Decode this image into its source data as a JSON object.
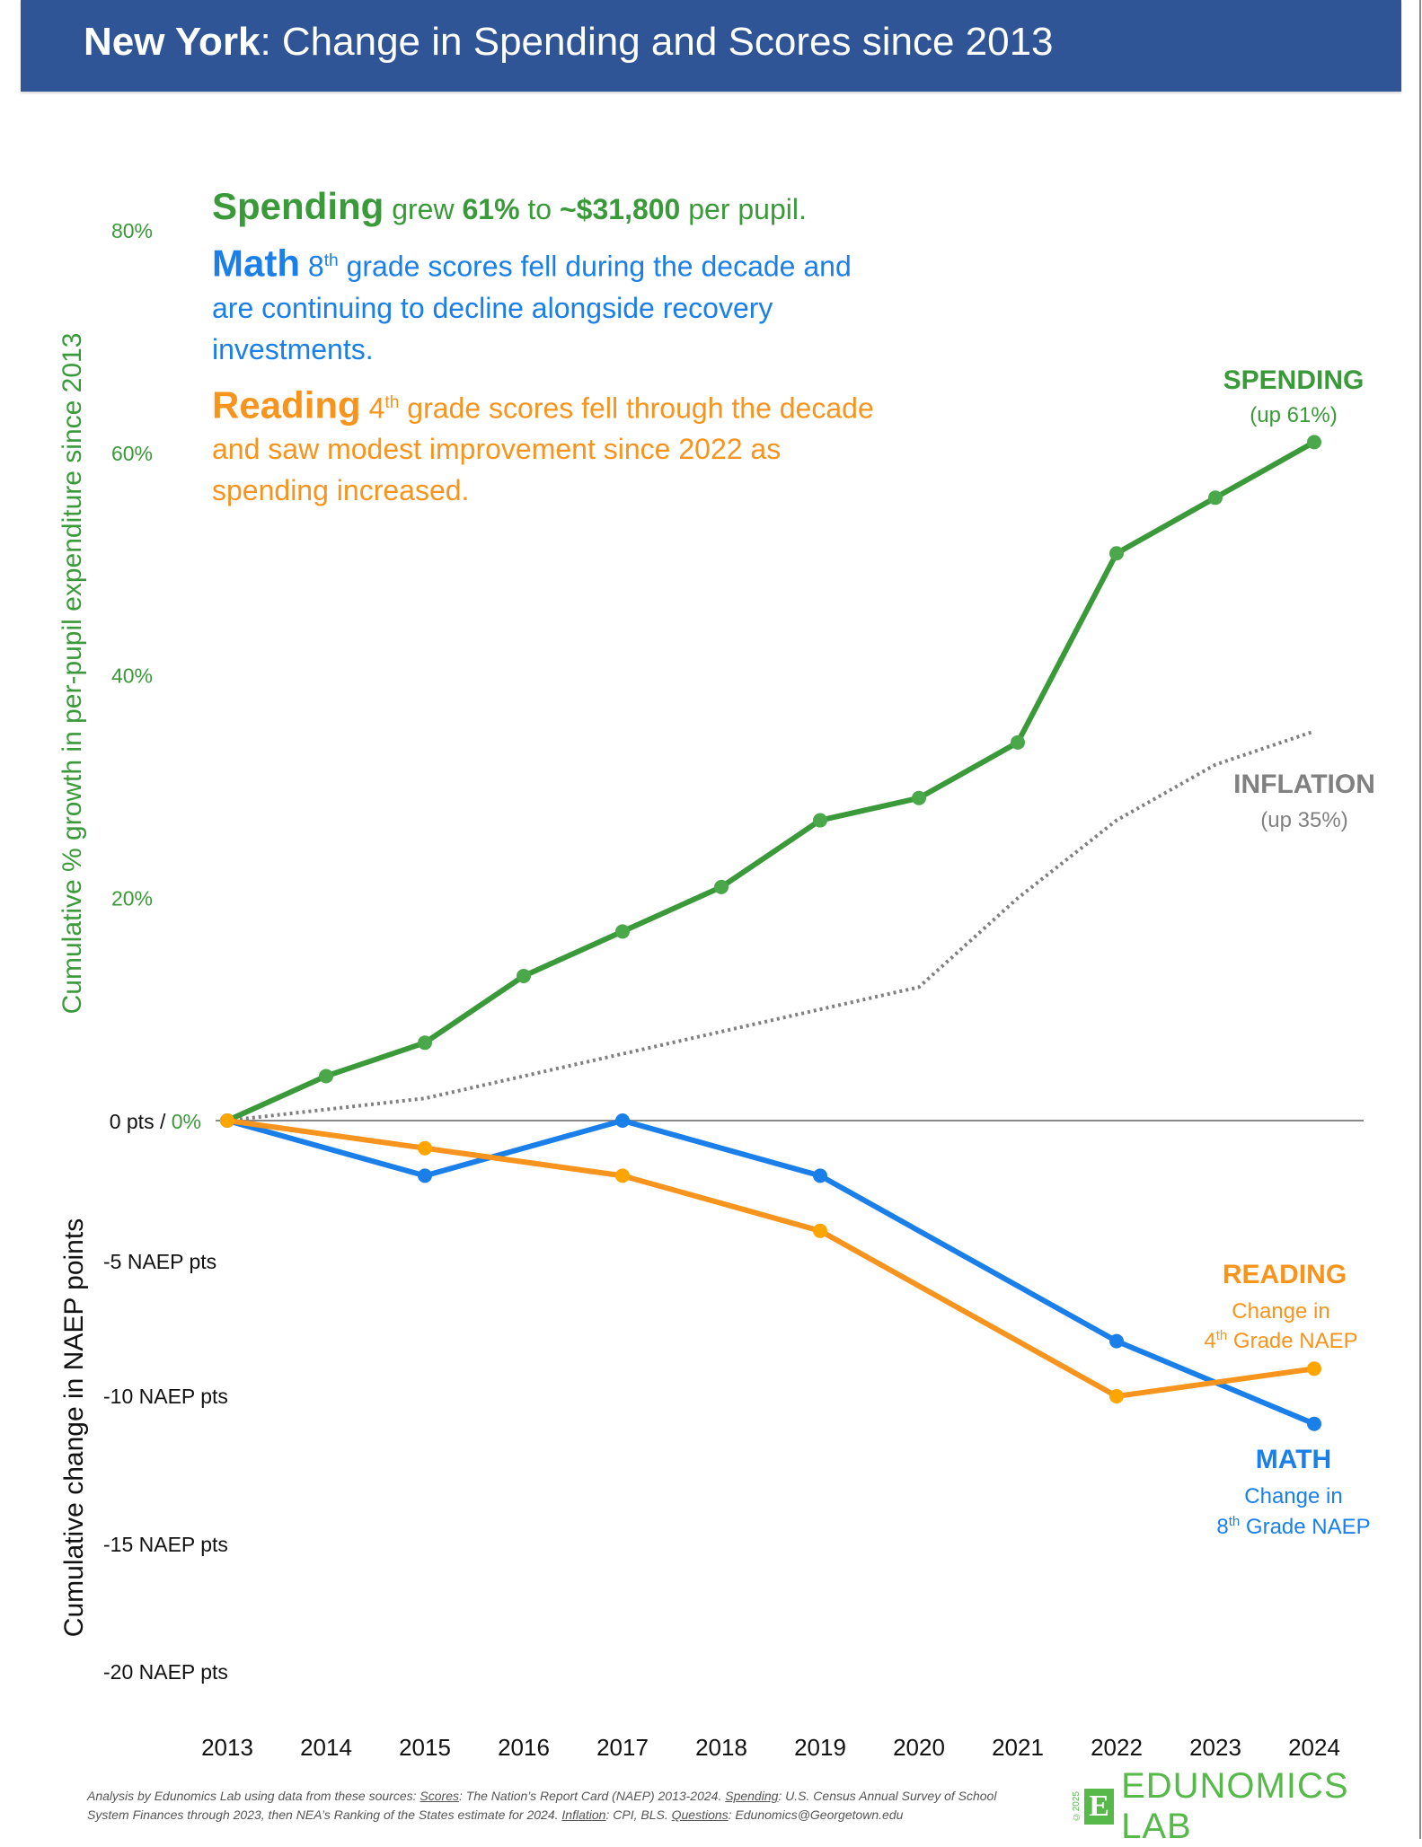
{
  "header": {
    "title_bold": "New York",
    "title_rest": ": Change in Spending and Scores since 2013"
  },
  "summary": {
    "spending": {
      "head": "Spending",
      "t1": " grew ",
      "pct": "61%",
      "t2": " to ",
      "amount": "~$31,800",
      "t3": " per pupil."
    },
    "math": {
      "head": "Math",
      "grade_num": " 8",
      "grade_sup": "th",
      "text": " grade scores fell during the decade and are continuing to decline alongside recovery investments."
    },
    "reading": {
      "head": "Reading",
      "grade_num": " 4",
      "grade_sup": "th",
      "text": " grade scores fell through the decade and saw modest improvement since 2022 as spending increased."
    }
  },
  "colors": {
    "header_bg": "#2f5597",
    "spending": "#3a9a3a",
    "spending_marker": "#4aa84a",
    "math": "#1a7fe8",
    "reading": "#f7941d",
    "reading_marker": "#ffa500",
    "inflation": "#808080",
    "zero_line": "#888888",
    "logo": "#56b94a"
  },
  "chart_data": {
    "type": "line",
    "title": "New York: Change in Spending and Scores since 2013",
    "x": [
      2013,
      2014,
      2015,
      2016,
      2017,
      2018,
      2019,
      2020,
      2021,
      2022,
      2023,
      2024
    ],
    "xtick_labels": [
      "2013",
      "2014",
      "2015",
      "2016",
      "2017",
      "2018",
      "2019",
      "2020",
      "2021",
      "2022",
      "2023",
      "2024"
    ],
    "ylabel_top": "Cumulative % growth in per-pupil expenditure since 2013",
    "ylabel_bottom": "Cumulative change in NAEP points",
    "upper_axis": {
      "unit": "percent",
      "range": [
        0,
        80
      ],
      "ticks": [
        {
          "value": 80,
          "label": "80%"
        },
        {
          "value": 60,
          "label": "60%"
        },
        {
          "value": 40,
          "label": "40%"
        },
        {
          "value": 20,
          "label": "20%"
        }
      ]
    },
    "zero_label_black": "0 pts / ",
    "zero_label_green": "0%",
    "lower_axis": {
      "unit": "NAEP points",
      "range": [
        -20,
        0
      ],
      "ticks": [
        {
          "value": -5,
          "label": "-5 NAEP pts"
        },
        {
          "value": -10,
          "label": "-10 NAEP pts"
        },
        {
          "value": -15,
          "label": "-15 NAEP pts"
        },
        {
          "value": -20,
          "label": "-20 NAEP pts"
        }
      ]
    },
    "series": [
      {
        "name": "Spending",
        "axis": "upper",
        "style": "solid-markers",
        "x": [
          2013,
          2014,
          2015,
          2016,
          2017,
          2018,
          2019,
          2020,
          2021,
          2022,
          2023,
          2024
        ],
        "values": [
          0,
          4,
          7,
          13,
          17,
          21,
          27,
          29,
          34,
          51,
          56,
          61
        ]
      },
      {
        "name": "Inflation",
        "axis": "upper",
        "style": "dotted",
        "x": [
          2013,
          2015,
          2017,
          2018,
          2019,
          2020,
          2021,
          2022,
          2023,
          2024
        ],
        "values": [
          0,
          2,
          6,
          8,
          10,
          12,
          20,
          27,
          32,
          35
        ]
      },
      {
        "name": "Math",
        "axis": "lower",
        "style": "solid-markers",
        "x": [
          2013,
          2015,
          2017,
          2019,
          2022,
          2024
        ],
        "values": [
          0,
          -2,
          0,
          -2,
          -8,
          -11
        ]
      },
      {
        "name": "Reading",
        "axis": "lower",
        "style": "solid-markers",
        "x": [
          2013,
          2015,
          2017,
          2019,
          2022,
          2024
        ],
        "values": [
          0,
          -1,
          -2,
          -4,
          -10,
          -9
        ]
      }
    ],
    "annotations": {
      "spending": {
        "title": "SPENDING",
        "sub": "(up 61%)"
      },
      "inflation": {
        "title": "INFLATION",
        "sub": "(up 35%)"
      },
      "reading": {
        "title": "READING",
        "sub1": "Change in",
        "sub2_num": "4",
        "sub2_sup": "th",
        "sub2_rest": " Grade NAEP"
      },
      "math": {
        "title": "MATH",
        "sub1": "Change in",
        "sub2_num": "8",
        "sub2_sup": "th",
        "sub2_rest": " Grade NAEP"
      }
    }
  },
  "footer": {
    "pre": "Analysis by Edunomics Lab using data from these sources: ",
    "scores_label": "Scores",
    "scores_text": ": The Nation’s Report Card (NAEP) 2013-2024. ",
    "spending_label": "Spending",
    "spending_text": ": U.S. Census Annual Survey of School System Finances through 2023, then NEA’s Ranking of the States estimate for 2024. ",
    "inflation_label": "Inflation",
    "inflation_text": ": CPI, BLS. ",
    "questions_label": "Questions",
    "questions_text": ": Edunomics@Georgetown.edu"
  },
  "logo": {
    "copyright": "©2025",
    "mark": "E",
    "name": "EDUNOMICS LAB"
  }
}
